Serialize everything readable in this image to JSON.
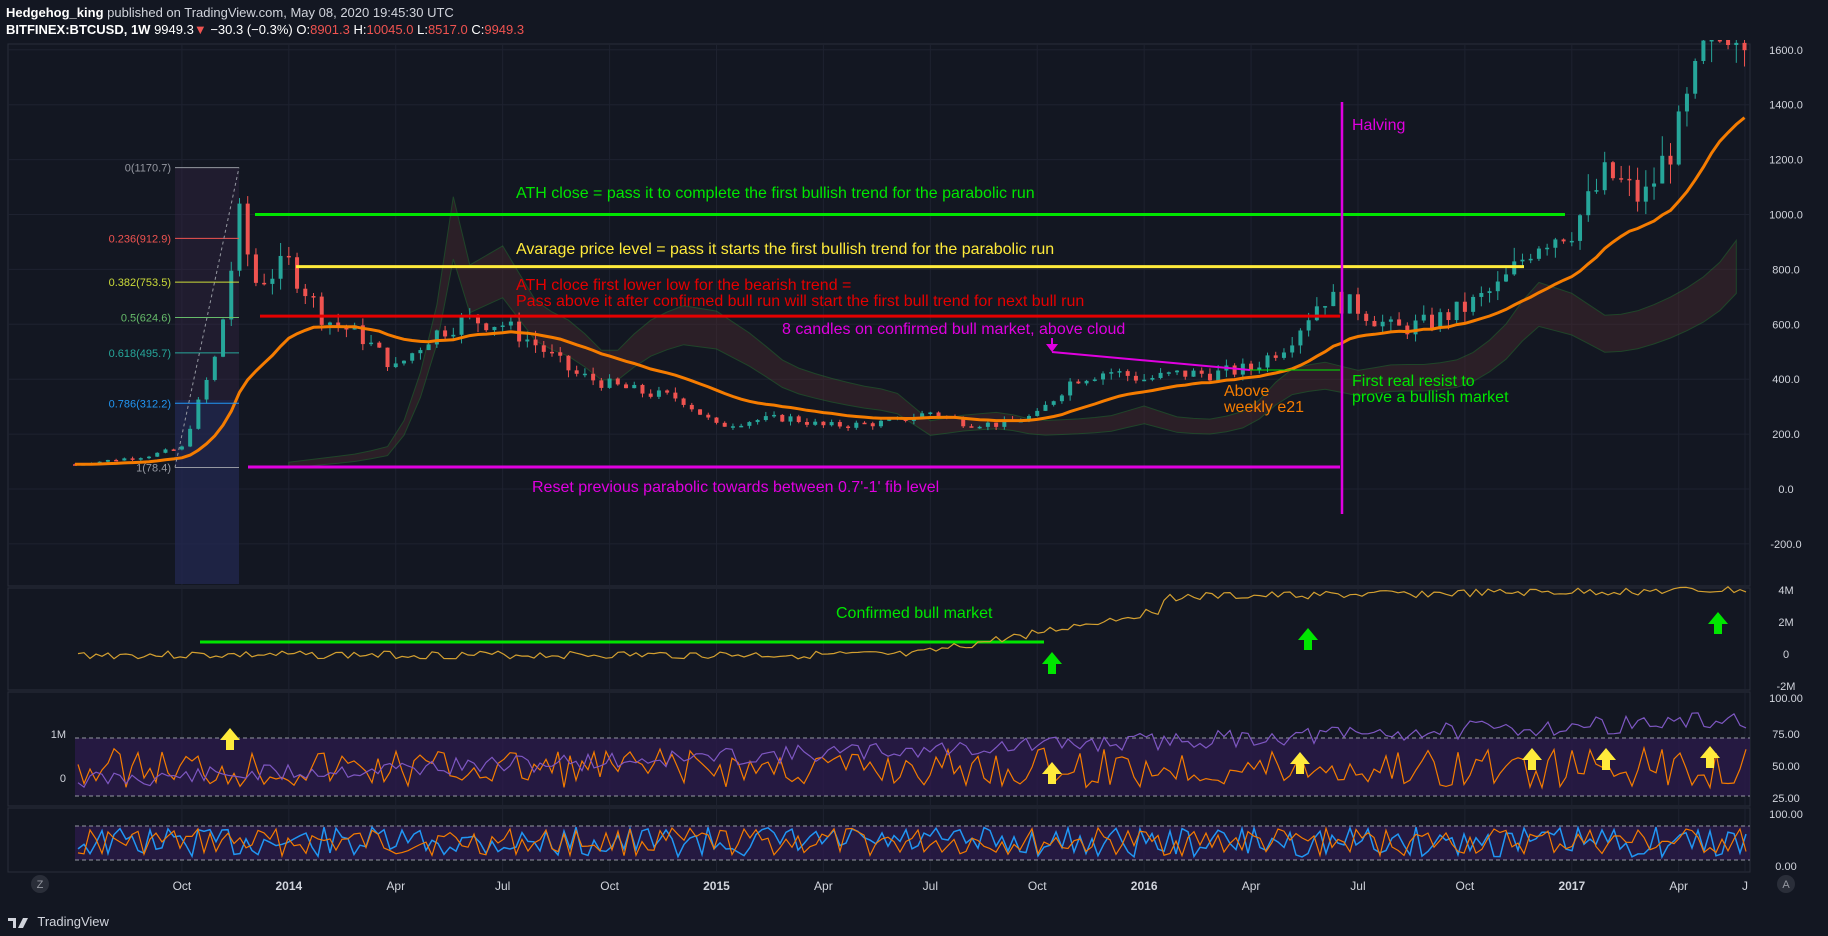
{
  "header": {
    "author": "Hedgehog_king",
    "published_text": "published on TradingView.com, May 08, 2020 19:45:30 UTC",
    "symbol": "BITFINEX:BTCUSD, 1W",
    "last": "9949.3",
    "change_arrow": "▼",
    "change": "−30.3 (−0.3%)",
    "open_label": "O:",
    "open": "8901.3",
    "high_label": "H:",
    "high": "10045.0",
    "low_label": "L:",
    "low": "8517.0",
    "close_label": "C:",
    "close": "9949.3"
  },
  "footer": {
    "brand": "TradingView",
    "zoom_left": "Z",
    "auto_right": "A"
  },
  "colors": {
    "background": "#131722",
    "grid": "#1e2230",
    "up": "#26a69a",
    "down": "#ef5350",
    "ema": "#f57c00",
    "green": "#00e600",
    "yellow": "#ffeb3b",
    "red": "#e50000",
    "magenta": "#e000e0",
    "rsi_fill": "#2a1a4a",
    "volume_line": "#d4a030"
  },
  "chart_data": [
    {
      "type": "candlestick",
      "pane": "price",
      "ylim": [
        -300,
        1660
      ],
      "y_ticks": [
        -200,
        0,
        200,
        400,
        600,
        800,
        1000,
        1200,
        1400,
        1600
      ],
      "y_tick_labels": [
        "-200.0",
        "0.0",
        "200.0",
        "400.0",
        "600.0",
        "800.0",
        "1000.0",
        "1200.0",
        "1400.0",
        "1600.0"
      ],
      "x_ticks": [
        "Oct",
        "2014",
        "Apr",
        "Jul",
        "Oct",
        "2015",
        "Apr",
        "Jul",
        "Oct",
        "2016",
        "Apr",
        "Jul",
        "Oct",
        "2017",
        "Apr",
        "J"
      ],
      "close_path": [
        [
          "2013-07",
          90
        ],
        [
          "2013-09",
          120
        ],
        [
          "2013-10",
          150
        ],
        [
          "2013-11",
          500
        ],
        [
          "2013-11-20",
          1000
        ],
        [
          "2013-12",
          750
        ],
        [
          "2014-01",
          820
        ],
        [
          "2014-02",
          620
        ],
        [
          "2014-03",
          560
        ],
        [
          "2014-04",
          440
        ],
        [
          "2014-05",
          560
        ],
        [
          "2014-06",
          620
        ],
        [
          "2014-07",
          600
        ],
        [
          "2014-08",
          520
        ],
        [
          "2014-09",
          420
        ],
        [
          "2014-10",
          380
        ],
        [
          "2014-11",
          350
        ],
        [
          "2014-12",
          330
        ],
        [
          "2015-01",
          230
        ],
        [
          "2015-02",
          250
        ],
        [
          "2015-03",
          260
        ],
        [
          "2015-04",
          230
        ],
        [
          "2015-05",
          235
        ],
        [
          "2015-06",
          245
        ],
        [
          "2015-07",
          280
        ],
        [
          "2015-08",
          240
        ],
        [
          "2015-09",
          235
        ],
        [
          "2015-10",
          270
        ],
        [
          "2015-11",
          400
        ],
        [
          "2015-12",
          430
        ],
        [
          "2016-01",
          400
        ],
        [
          "2016-02",
          420
        ],
        [
          "2016-03",
          420
        ],
        [
          "2016-04",
          440
        ],
        [
          "2016-05",
          530
        ],
        [
          "2016-06",
          700
        ],
        [
          "2016-07",
          660
        ],
        [
          "2016-08",
          580
        ],
        [
          "2016-09",
          605
        ],
        [
          "2016-10",
          660
        ],
        [
          "2016-11",
          740
        ],
        [
          "2016-12",
          900
        ],
        [
          "2017-01",
          950
        ],
        [
          "2017-02",
          1150
        ],
        [
          "2017-03",
          1050
        ],
        [
          "2017-04",
          1300
        ],
        [
          "2017-05",
          1700
        ]
      ],
      "ema_label": "weekly e21",
      "fib_levels": [
        {
          "label": "0(1170.7)",
          "value": 1170.7
        },
        {
          "label": "0.236(912.9)",
          "value": 912.9
        },
        {
          "label": "0.382(753.5)",
          "value": 753.5
        },
        {
          "label": "0.5(624.6)",
          "value": 624.6
        },
        {
          "label": "0.618(495.7)",
          "value": 495.7
        },
        {
          "label": "0.786(312.2)",
          "value": 312.2
        },
        {
          "label": "1(78.4)",
          "value": 78.4
        }
      ],
      "horizontal_lines": [
        {
          "name": "ath-close",
          "value": 1000,
          "color": "green"
        },
        {
          "name": "average-price",
          "value": 810,
          "color": "yellow"
        },
        {
          "name": "ath-close-lower-low",
          "value": 630,
          "color": "red"
        },
        {
          "name": "reset-level",
          "value": 80,
          "color": "magenta"
        }
      ],
      "annotations": {
        "ath_close": "ATH close = pass it to complete the first bullish trend for the parabolic run",
        "average_price": "Avarage price level = pass it starts the first bullish trend for the parabolic run",
        "lower_low_1": "ATH cloce first lower low for the bearish trend =",
        "lower_low_2": "Pass above it after confirmed bull run will start the first bull trend for next bull run",
        "eight_candles": "8 candles on confirmed bull market, above cloud",
        "halving": "Halving",
        "first_resist_1": "First real resist to",
        "first_resist_2": "prove a bullish market",
        "above_1": "Above",
        "above_2": "weekly e21",
        "reset": "Reset previous parabolic towards between 0.7'-1' fib level"
      }
    },
    {
      "type": "line",
      "pane": "indicator-1",
      "y_tick_labels": [
        "4M",
        "2M",
        "0",
        "-2M"
      ],
      "annotation": "Confirmed bull market"
    },
    {
      "type": "line",
      "pane": "indicator-2",
      "left_tick_labels": [
        "1M",
        "0"
      ],
      "y_tick_labels": [
        "100.00",
        "75.00",
        "50.00",
        "25.00"
      ]
    },
    {
      "type": "line",
      "pane": "indicator-3",
      "y_tick_labels": [
        "100.00",
        "0.00"
      ]
    }
  ]
}
